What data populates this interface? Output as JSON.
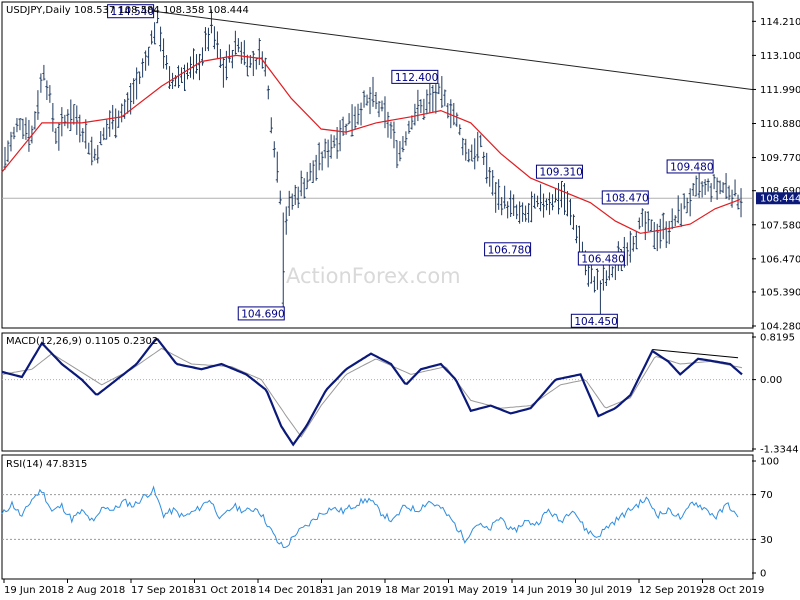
{
  "chart_data": {
    "type": "candlestick",
    "symbol_info": "USDJPY,Daily  108.537 108.584 108.358 108.444",
    "watermark": "ActionForex.com",
    "colors": {
      "bars": "#1f3a5f",
      "ma": "#e11d21",
      "trend": "#222222",
      "macd": "#0b1a7a",
      "signal": "#9a9a9a",
      "rsi": "#2f8ee0",
      "box_border": "#000080",
      "box_text": "#000080",
      "last_price_bg": "#0b1a7a"
    },
    "price_axis": {
      "ticks": [
        "114.210",
        "113.100",
        "111.990",
        "110.880",
        "109.770",
        "108.690",
        "107.580",
        "106.470",
        "105.390",
        "104.280"
      ],
      "range": [
        104.28,
        114.71
      ],
      "last_price": "108.444"
    },
    "x_axis_labels": [
      "19 Jun 2018",
      "2 Aug 2018",
      "17 Sep 2018",
      "31 Oct 2018",
      "14 Dec 2018",
      "31 Jan 2019",
      "18 Mar 2019",
      "1 May 2019",
      "14 Jun 2019",
      "30 Jul 2019",
      "12 Sep 2019",
      "28 Oct 2019"
    ],
    "annotations": [
      {
        "label": "114.540",
        "value": 114.54,
        "pos": "left"
      },
      {
        "label": "104.690",
        "value": 104.69,
        "pos": "left"
      },
      {
        "label": "112.400",
        "value": 112.4,
        "pos": "left"
      },
      {
        "label": "109.310",
        "value": 109.31,
        "pos": "right"
      },
      {
        "label": "106.780",
        "value": 106.78,
        "pos": "left"
      },
      {
        "label": "104.450",
        "value": 104.45,
        "pos": "left"
      },
      {
        "label": "108.470",
        "value": 108.47,
        "pos": "left"
      },
      {
        "label": "106.480",
        "value": 106.48,
        "pos": "right"
      },
      {
        "label": "109.480",
        "value": 109.48,
        "pos": "left"
      }
    ],
    "price_path": [
      {
        "t": 0,
        "v": 109.5
      },
      {
        "t": 18,
        "v": 111.0
      },
      {
        "t": 30,
        "v": 110.5
      },
      {
        "t": 42,
        "v": 112.7
      },
      {
        "t": 55,
        "v": 110.4
      },
      {
        "t": 68,
        "v": 111.3
      },
      {
        "t": 80,
        "v": 110.8
      },
      {
        "t": 92,
        "v": 109.8
      },
      {
        "t": 108,
        "v": 110.9
      },
      {
        "t": 125,
        "v": 111.4
      },
      {
        "t": 142,
        "v": 112.7
      },
      {
        "t": 156,
        "v": 114.3
      },
      {
        "t": 168,
        "v": 112.2
      },
      {
        "t": 180,
        "v": 112.5
      },
      {
        "t": 196,
        "v": 112.7
      },
      {
        "t": 210,
        "v": 114.0
      },
      {
        "t": 222,
        "v": 112.6
      },
      {
        "t": 236,
        "v": 113.5
      },
      {
        "t": 250,
        "v": 112.8
      },
      {
        "t": 262,
        "v": 113.2
      },
      {
        "t": 272,
        "v": 110.5
      },
      {
        "t": 283,
        "v": 107.6
      },
      {
        "t": 290,
        "v": 108.3
      },
      {
        "t": 302,
        "v": 108.9
      },
      {
        "t": 318,
        "v": 109.6
      },
      {
        "t": 332,
        "v": 110.3
      },
      {
        "t": 346,
        "v": 110.9
      },
      {
        "t": 360,
        "v": 111.4
      },
      {
        "t": 372,
        "v": 111.7
      },
      {
        "t": 386,
        "v": 111.0
      },
      {
        "t": 398,
        "v": 109.9
      },
      {
        "t": 412,
        "v": 111.2
      },
      {
        "t": 425,
        "v": 111.5
      },
      {
        "t": 438,
        "v": 111.8
      },
      {
        "t": 452,
        "v": 111.3
      },
      {
        "t": 466,
        "v": 109.9
      },
      {
        "t": 480,
        "v": 110.1
      },
      {
        "t": 494,
        "v": 108.6
      },
      {
        "t": 508,
        "v": 108.2
      },
      {
        "t": 522,
        "v": 107.8
      },
      {
        "t": 536,
        "v": 108.2
      },
      {
        "t": 550,
        "v": 108.4
      },
      {
        "t": 562,
        "v": 108.6
      },
      {
        "t": 576,
        "v": 107.4
      },
      {
        "t": 588,
        "v": 106.0
      },
      {
        "t": 600,
        "v": 105.6
      },
      {
        "t": 614,
        "v": 106.2
      },
      {
        "t": 628,
        "v": 106.9
      },
      {
        "t": 642,
        "v": 107.6
      },
      {
        "t": 656,
        "v": 107.3
      },
      {
        "t": 670,
        "v": 107.5
      },
      {
        "t": 684,
        "v": 108.2
      },
      {
        "t": 698,
        "v": 108.7
      },
      {
        "t": 712,
        "v": 108.8
      },
      {
        "t": 726,
        "v": 108.8
      },
      {
        "t": 740,
        "v": 108.44
      }
    ],
    "ma_path": [
      {
        "t": 0,
        "v": 109.3
      },
      {
        "t": 40,
        "v": 110.9
      },
      {
        "t": 80,
        "v": 110.9
      },
      {
        "t": 120,
        "v": 111.1
      },
      {
        "t": 160,
        "v": 112.1
      },
      {
        "t": 200,
        "v": 112.9
      },
      {
        "t": 235,
        "v": 113.1
      },
      {
        "t": 260,
        "v": 113.0
      },
      {
        "t": 290,
        "v": 111.7
      },
      {
        "t": 320,
        "v": 110.7
      },
      {
        "t": 345,
        "v": 110.6
      },
      {
        "t": 375,
        "v": 110.9
      },
      {
        "t": 410,
        "v": 111.1
      },
      {
        "t": 440,
        "v": 111.3
      },
      {
        "t": 470,
        "v": 110.9
      },
      {
        "t": 500,
        "v": 109.9
      },
      {
        "t": 530,
        "v": 109.1
      },
      {
        "t": 560,
        "v": 108.7
      },
      {
        "t": 590,
        "v": 108.3
      },
      {
        "t": 615,
        "v": 107.7
      },
      {
        "t": 640,
        "v": 107.3
      },
      {
        "t": 660,
        "v": 107.4
      },
      {
        "t": 690,
        "v": 107.6
      },
      {
        "t": 715,
        "v": 108.1
      },
      {
        "t": 740,
        "v": 108.4
      }
    ],
    "trendline": [
      {
        "t": 152,
        "v": 114.54
      },
      {
        "t": 752,
        "v": 111.99
      }
    ],
    "macd": {
      "label": "MACD(12,26,9) 0.1105 0.2302",
      "ticks": [
        "0.8195",
        "0.00",
        "-1.3344"
      ],
      "range": [
        -1.3344,
        0.8195
      ],
      "line": [
        {
          "t": 0,
          "v": 0.15
        },
        {
          "t": 20,
          "v": 0.05
        },
        {
          "t": 40,
          "v": 0.7
        },
        {
          "t": 60,
          "v": 0.3
        },
        {
          "t": 80,
          "v": 0.0
        },
        {
          "t": 95,
          "v": -0.3
        },
        {
          "t": 115,
          "v": 0.0
        },
        {
          "t": 135,
          "v": 0.3
        },
        {
          "t": 155,
          "v": 0.8
        },
        {
          "t": 175,
          "v": 0.3
        },
        {
          "t": 200,
          "v": 0.2
        },
        {
          "t": 220,
          "v": 0.3
        },
        {
          "t": 245,
          "v": 0.1
        },
        {
          "t": 265,
          "v": -0.2
        },
        {
          "t": 280,
          "v": -0.9
        },
        {
          "t": 292,
          "v": -1.25
        },
        {
          "t": 305,
          "v": -0.9
        },
        {
          "t": 325,
          "v": -0.2
        },
        {
          "t": 345,
          "v": 0.2
        },
        {
          "t": 370,
          "v": 0.5
        },
        {
          "t": 390,
          "v": 0.3
        },
        {
          "t": 405,
          "v": -0.1
        },
        {
          "t": 420,
          "v": 0.2
        },
        {
          "t": 440,
          "v": 0.3
        },
        {
          "t": 455,
          "v": 0.0
        },
        {
          "t": 470,
          "v": -0.6
        },
        {
          "t": 490,
          "v": -0.5
        },
        {
          "t": 510,
          "v": -0.65
        },
        {
          "t": 530,
          "v": -0.55
        },
        {
          "t": 555,
          "v": 0.0
        },
        {
          "t": 580,
          "v": 0.1
        },
        {
          "t": 598,
          "v": -0.7
        },
        {
          "t": 615,
          "v": -0.55
        },
        {
          "t": 630,
          "v": -0.3
        },
        {
          "t": 652,
          "v": 0.55
        },
        {
          "t": 668,
          "v": 0.35
        },
        {
          "t": 680,
          "v": 0.1
        },
        {
          "t": 698,
          "v": 0.4
        },
        {
          "t": 715,
          "v": 0.35
        },
        {
          "t": 730,
          "v": 0.3
        },
        {
          "t": 742,
          "v": 0.1
        }
      ],
      "signal": [
        {
          "t": 0,
          "v": 0.1
        },
        {
          "t": 30,
          "v": 0.2
        },
        {
          "t": 50,
          "v": 0.5
        },
        {
          "t": 75,
          "v": 0.2
        },
        {
          "t": 100,
          "v": -0.1
        },
        {
          "t": 130,
          "v": 0.2
        },
        {
          "t": 160,
          "v": 0.6
        },
        {
          "t": 190,
          "v": 0.3
        },
        {
          "t": 230,
          "v": 0.25
        },
        {
          "t": 260,
          "v": 0.0
        },
        {
          "t": 285,
          "v": -0.7
        },
        {
          "t": 300,
          "v": -1.1
        },
        {
          "t": 320,
          "v": -0.5
        },
        {
          "t": 345,
          "v": 0.1
        },
        {
          "t": 375,
          "v": 0.4
        },
        {
          "t": 410,
          "v": 0.1
        },
        {
          "t": 445,
          "v": 0.25
        },
        {
          "t": 470,
          "v": -0.4
        },
        {
          "t": 500,
          "v": -0.55
        },
        {
          "t": 530,
          "v": -0.5
        },
        {
          "t": 560,
          "v": -0.1
        },
        {
          "t": 585,
          "v": 0.0
        },
        {
          "t": 605,
          "v": -0.55
        },
        {
          "t": 630,
          "v": -0.35
        },
        {
          "t": 655,
          "v": 0.45
        },
        {
          "t": 680,
          "v": 0.3
        },
        {
          "t": 710,
          "v": 0.35
        },
        {
          "t": 742,
          "v": 0.23
        }
      ],
      "divergence_line": [
        {
          "t": 652,
          "v": 0.58
        },
        {
          "t": 738,
          "v": 0.42
        }
      ]
    },
    "rsi": {
      "label": "RSI(14) 47.8315",
      "ticks": [
        "100",
        "70",
        "30",
        "0"
      ],
      "range": [
        0,
        100
      ],
      "levels": [
        70,
        30
      ],
      "path": [
        {
          "t": 0,
          "v": 52
        },
        {
          "t": 10,
          "v": 62
        },
        {
          "t": 20,
          "v": 50
        },
        {
          "t": 30,
          "v": 66
        },
        {
          "t": 40,
          "v": 74
        },
        {
          "t": 50,
          "v": 55
        },
        {
          "t": 60,
          "v": 60
        },
        {
          "t": 70,
          "v": 48
        },
        {
          "t": 80,
          "v": 55
        },
        {
          "t": 92,
          "v": 45
        },
        {
          "t": 102,
          "v": 60
        },
        {
          "t": 112,
          "v": 56
        },
        {
          "t": 122,
          "v": 64
        },
        {
          "t": 132,
          "v": 60
        },
        {
          "t": 142,
          "v": 68
        },
        {
          "t": 152,
          "v": 74
        },
        {
          "t": 162,
          "v": 52
        },
        {
          "t": 172,
          "v": 56
        },
        {
          "t": 182,
          "v": 50
        },
        {
          "t": 195,
          "v": 56
        },
        {
          "t": 208,
          "v": 66
        },
        {
          "t": 220,
          "v": 48
        },
        {
          "t": 232,
          "v": 60
        },
        {
          "t": 244,
          "v": 55
        },
        {
          "t": 256,
          "v": 58
        },
        {
          "t": 266,
          "v": 44
        },
        {
          "t": 276,
          "v": 28
        },
        {
          "t": 284,
          "v": 22
        },
        {
          "t": 294,
          "v": 35
        },
        {
          "t": 306,
          "v": 42
        },
        {
          "t": 318,
          "v": 52
        },
        {
          "t": 330,
          "v": 58
        },
        {
          "t": 342,
          "v": 55
        },
        {
          "t": 356,
          "v": 62
        },
        {
          "t": 368,
          "v": 66
        },
        {
          "t": 380,
          "v": 54
        },
        {
          "t": 392,
          "v": 46
        },
        {
          "t": 404,
          "v": 60
        },
        {
          "t": 416,
          "v": 56
        },
        {
          "t": 428,
          "v": 64
        },
        {
          "t": 440,
          "v": 58
        },
        {
          "t": 452,
          "v": 46
        },
        {
          "t": 464,
          "v": 30
        },
        {
          "t": 476,
          "v": 44
        },
        {
          "t": 488,
          "v": 38
        },
        {
          "t": 500,
          "v": 50
        },
        {
          "t": 512,
          "v": 36
        },
        {
          "t": 524,
          "v": 46
        },
        {
          "t": 536,
          "v": 44
        },
        {
          "t": 548,
          "v": 56
        },
        {
          "t": 560,
          "v": 46
        },
        {
          "t": 572,
          "v": 58
        },
        {
          "t": 584,
          "v": 40
        },
        {
          "t": 596,
          "v": 32
        },
        {
          "t": 608,
          "v": 42
        },
        {
          "t": 620,
          "v": 50
        },
        {
          "t": 632,
          "v": 58
        },
        {
          "t": 646,
          "v": 66
        },
        {
          "t": 658,
          "v": 52
        },
        {
          "t": 670,
          "v": 56
        },
        {
          "t": 682,
          "v": 48
        },
        {
          "t": 692,
          "v": 64
        },
        {
          "t": 704,
          "v": 58
        },
        {
          "t": 716,
          "v": 50
        },
        {
          "t": 728,
          "v": 62
        },
        {
          "t": 738,
          "v": 48
        }
      ]
    }
  }
}
